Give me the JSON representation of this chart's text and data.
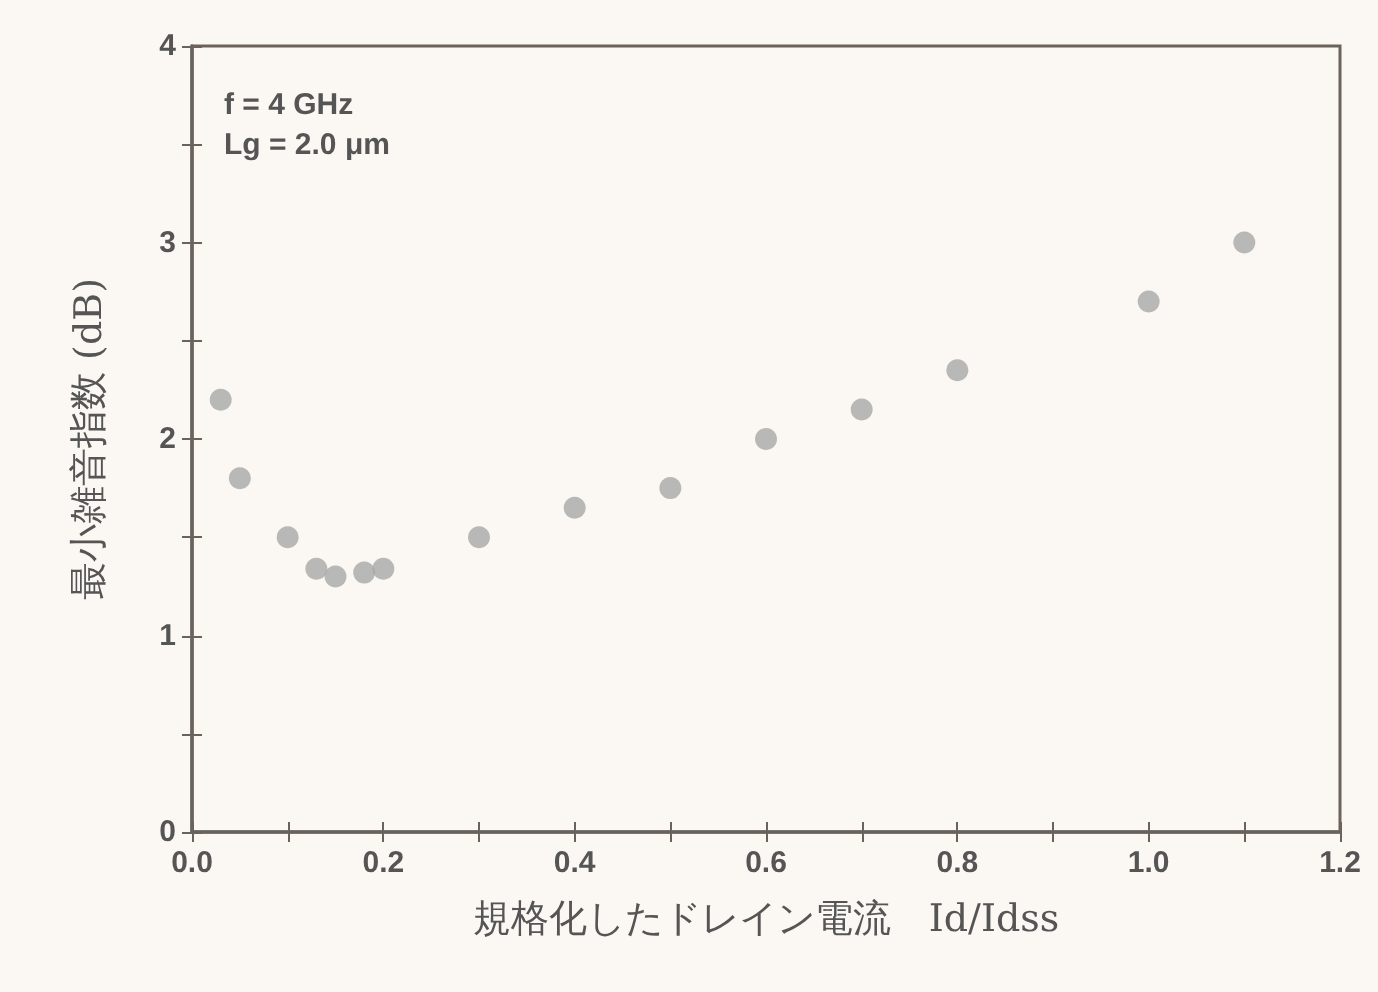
{
  "chart_data": {
    "type": "scatter",
    "xlabel": "規格化したドレイン電流　Id/Idss",
    "ylabel": "最小雑音指数 (dB)",
    "annotations": [
      "f = 4 GHz",
      "Lg = 2.0 μm"
    ],
    "x": [
      0.03,
      0.05,
      0.1,
      0.13,
      0.15,
      0.18,
      0.2,
      0.3,
      0.4,
      0.5,
      0.6,
      0.7,
      0.8,
      1.0,
      1.1
    ],
    "series": [
      {
        "color": "#a8a8a8",
        "values": [
          2.2,
          1.8,
          1.5,
          1.34,
          1.3,
          1.32,
          1.34,
          1.5,
          1.65,
          1.75,
          2.0,
          2.15,
          2.35,
          2.7,
          3.0
        ]
      }
    ],
    "marker": "circle",
    "grid": false,
    "xlim": [
      0,
      1.2
    ],
    "ylim": [
      0,
      4
    ],
    "xticks": [
      "0.0",
      {
        "value": 0.1,
        "label": null
      },
      {
        "value": 0.2,
        "label": "0.2"
      },
      {
        "value": 0.3,
        "label": null
      },
      {
        "value": 0.4,
        "label": "0.4"
      },
      {
        "value": 0.5,
        "label": null
      },
      {
        "value": 0.6,
        "label": "0.6"
      },
      {
        "value": 0.7,
        "label": null
      },
      {
        "value": 0.8,
        "label": "0.8"
      },
      {
        "value": 0.9,
        "label": null
      },
      {
        "value": 1.0,
        "label": "1.0"
      },
      {
        "value": 1.1,
        "label": null
      },
      {
        "value": 1.2,
        "label": "1.2"
      }
    ],
    "yticks": [
      0,
      {
        "value": 0.5,
        "label": null
      },
      1,
      {
        "value": 1.5,
        "label": null
      },
      2,
      {
        "value": 2.5,
        "label": null
      },
      3,
      {
        "value": 3.5,
        "label": null
      },
      4
    ]
  }
}
